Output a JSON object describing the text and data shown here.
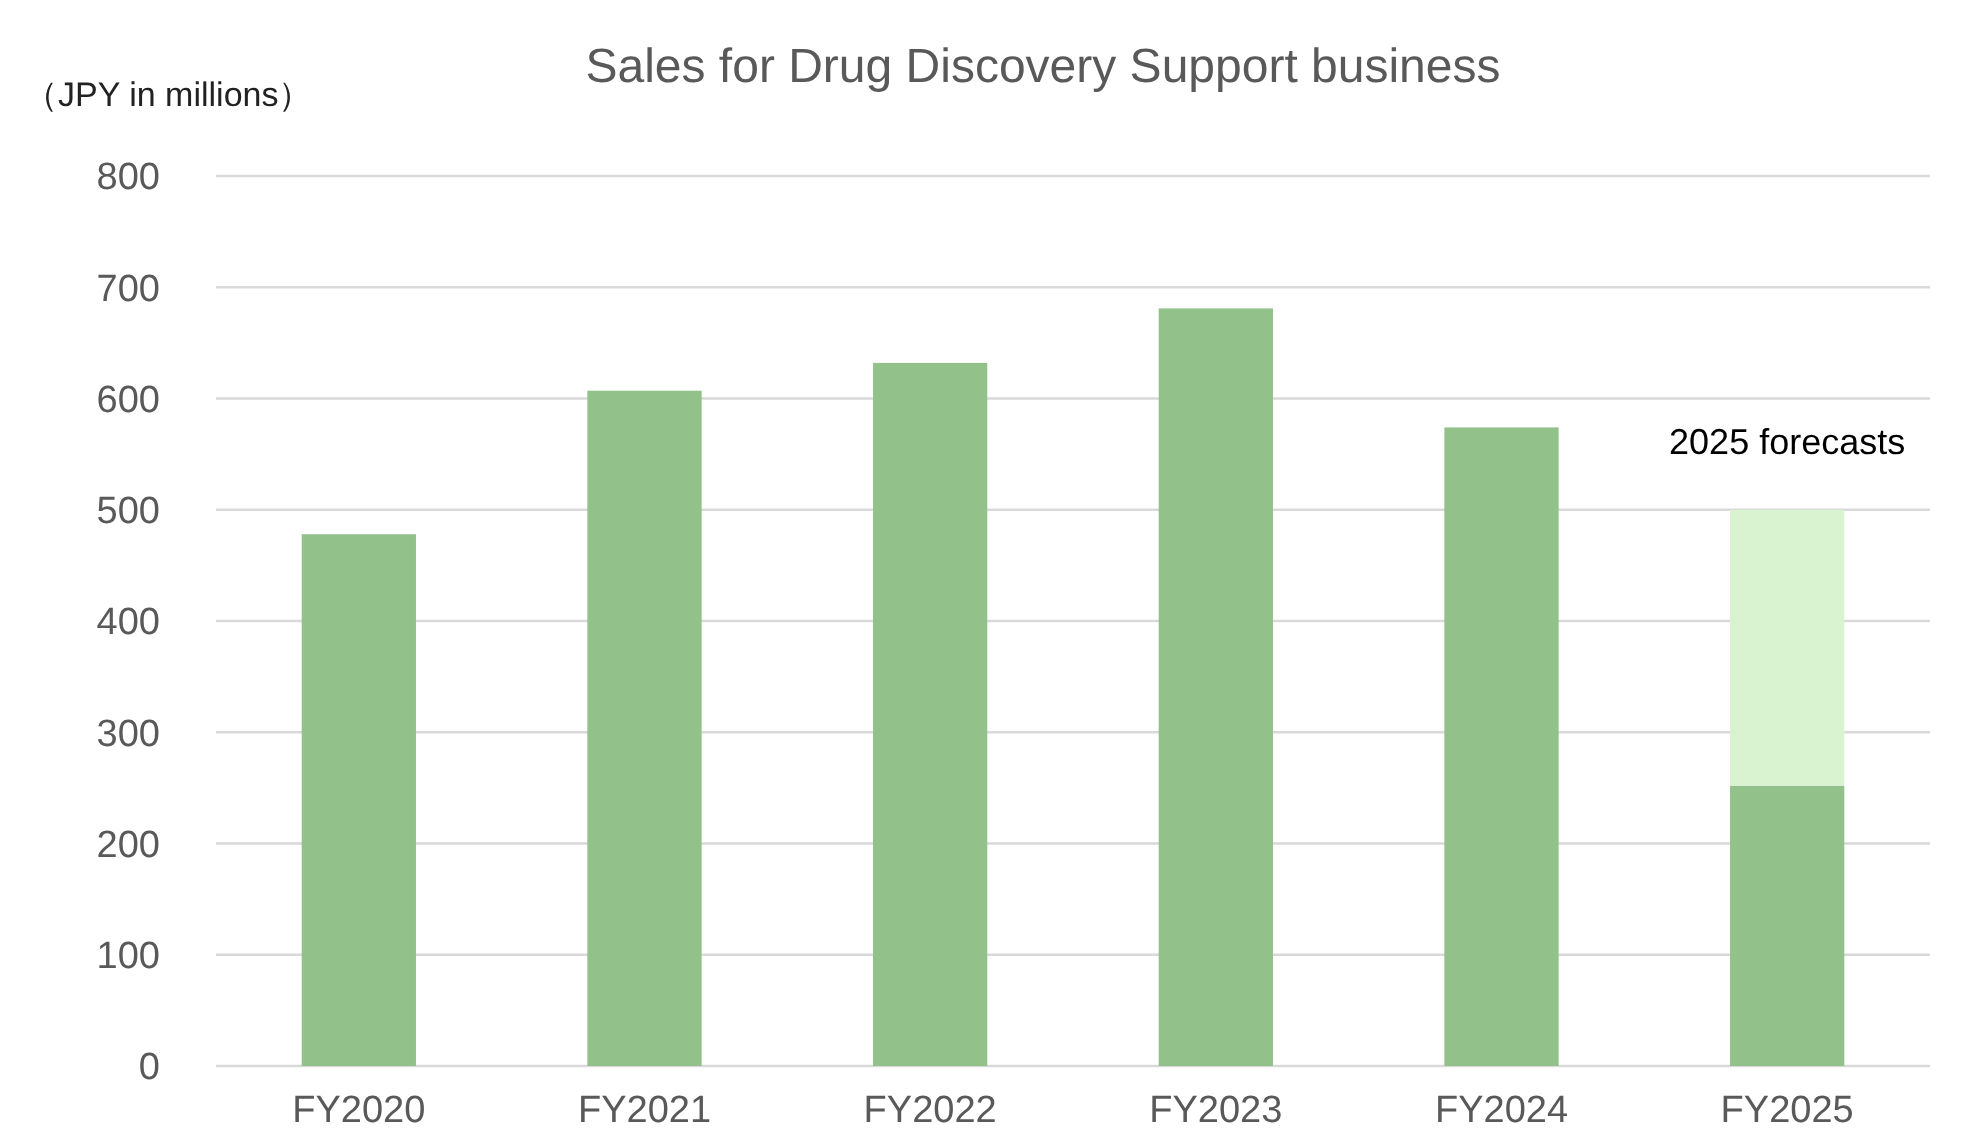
{
  "chart_data": {
    "type": "bar",
    "title": "Sales for Drug Discovery Support business",
    "ylabel": "（JPY in millions）",
    "categories": [
      "FY2020",
      "FY2021",
      "FY2022",
      "FY2023",
      "FY2024",
      "FY2025"
    ],
    "stacked": true,
    "series": [
      {
        "color": "#92c18a",
        "values": [
          478,
          607,
          632,
          681,
          574,
          252
        ]
      },
      {
        "color": "#d9f2d0",
        "values": [
          null,
          null,
          null,
          null,
          null,
          248
        ]
      }
    ],
    "ylim": [
      0,
      800
    ],
    "yticks": [
      0,
      100,
      200,
      300,
      400,
      500,
      600,
      700,
      800
    ],
    "grid": "y",
    "annotations": [
      {
        "text": "2025 forecasts",
        "x": "FY2025",
        "y": 500
      }
    ]
  }
}
